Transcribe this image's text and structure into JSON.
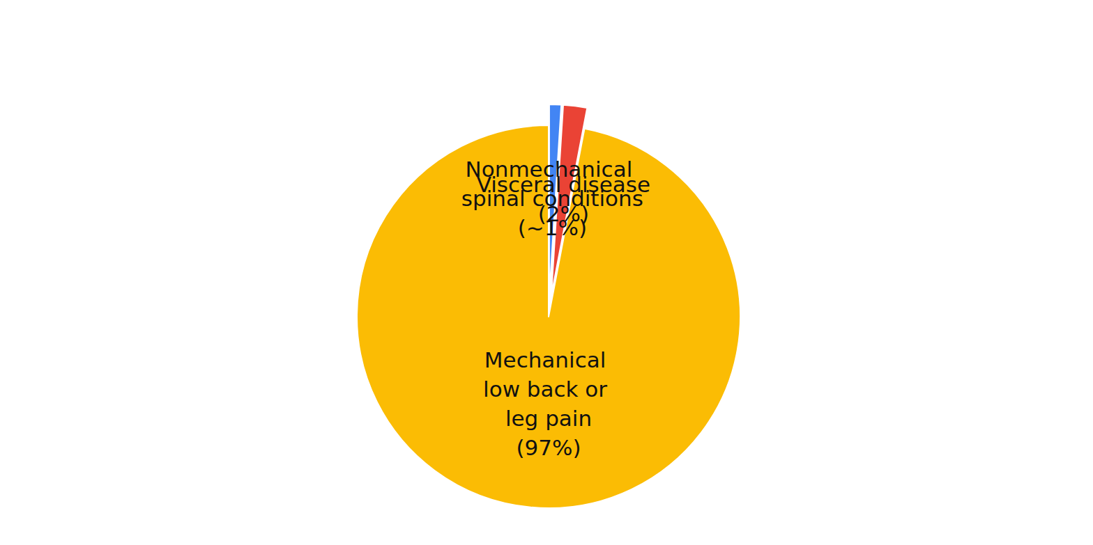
{
  "chart_data": {
    "type": "pie",
    "categories": [
      "Nonmechanical spinal conditions",
      "Visceral disease",
      "Mechanical low back or leg pain"
    ],
    "values": [
      1,
      2,
      97
    ],
    "value_labels": [
      "(~1%)",
      "(2%)",
      "(97%)"
    ],
    "colors": [
      "#4285f4",
      "#ea4335",
      "#fbbc04"
    ],
    "data_labels": true
  }
}
